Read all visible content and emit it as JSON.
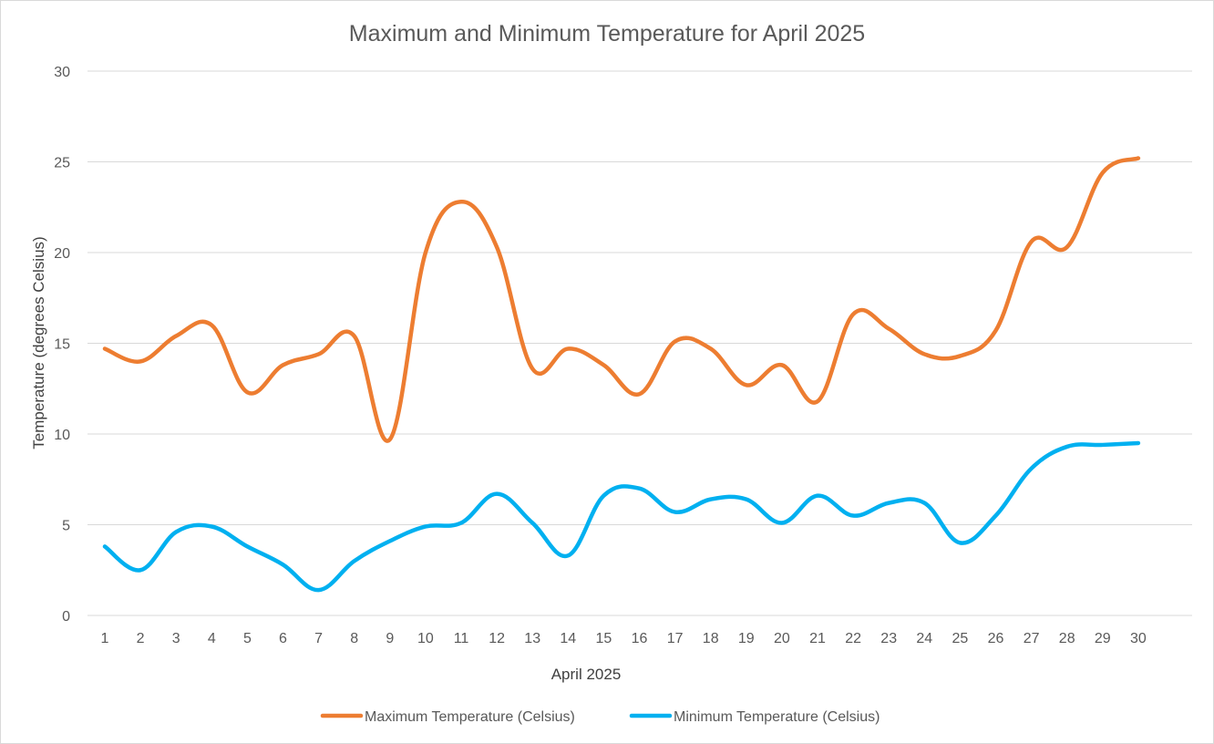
{
  "colors": {
    "max_series": "#ED7D31",
    "min_series": "#00B0F0",
    "grid": "#D9D9D9",
    "text": "#595959"
  },
  "chart_data": {
    "type": "line",
    "smooth": true,
    "title": "Maximum and Minimum Temperature for April 2025",
    "xlabel": "April 2025",
    "ylabel": "Temperature (degrees Celsius)",
    "ylim": [
      0,
      30
    ],
    "yticks": [
      0,
      5,
      10,
      15,
      20,
      25,
      30
    ],
    "grid": true,
    "legend_position": "bottom",
    "categories": [
      "1",
      "2",
      "3",
      "4",
      "5",
      "6",
      "7",
      "8",
      "9",
      "10",
      "11",
      "12",
      "13",
      "14",
      "15",
      "16",
      "17",
      "18",
      "19",
      "20",
      "21",
      "22",
      "23",
      "24",
      "25",
      "26",
      "27",
      "28",
      "29",
      "30"
    ],
    "series": [
      {
        "name": "Maximum Temperature (Celsius)",
        "color": "#ED7D31",
        "values": [
          14.7,
          14.0,
          15.4,
          16.0,
          12.3,
          13.8,
          14.4,
          15.4,
          9.7,
          20.0,
          22.8,
          20.3,
          13.6,
          14.7,
          13.8,
          12.2,
          15.1,
          14.7,
          12.7,
          13.8,
          11.8,
          16.6,
          15.8,
          14.4,
          14.3,
          15.7,
          20.6,
          20.3,
          24.4,
          25.2
        ]
      },
      {
        "name": "Minimum Temperature (Celsius)",
        "color": "#00B0F0",
        "values": [
          3.8,
          2.5,
          4.6,
          4.9,
          3.8,
          2.8,
          1.4,
          3.0,
          4.1,
          4.9,
          5.1,
          6.7,
          5.1,
          3.3,
          6.6,
          7.0,
          5.7,
          6.4,
          6.4,
          5.1,
          6.6,
          5.5,
          6.2,
          6.2,
          4.0,
          5.5,
          8.1,
          9.3,
          9.4,
          9.5
        ]
      }
    ]
  }
}
